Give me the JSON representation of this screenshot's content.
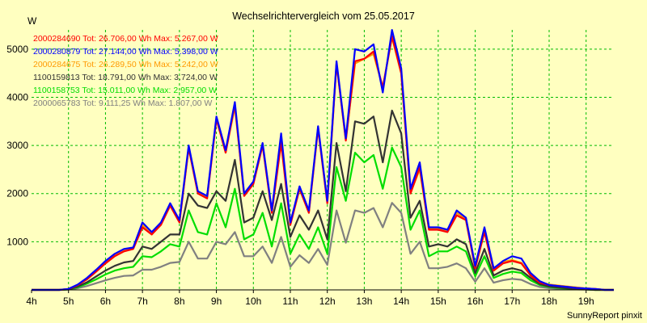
{
  "chart_data": {
    "type": "line",
    "title": "Wechselrichtervergleich vom 25.05.2017",
    "ylabel": "W",
    "xlabel": "",
    "footer": "SunnyReport pinxit",
    "ylim": [
      0,
      5400
    ],
    "yticks": [
      1000,
      2000,
      3000,
      4000,
      5000
    ],
    "xlim": [
      4,
      19.75
    ],
    "xticks": [
      {
        "label": "4h",
        "x": 4
      },
      {
        "label": "5h",
        "x": 5
      },
      {
        "label": "6h",
        "x": 6
      },
      {
        "label": "7h",
        "x": 7
      },
      {
        "label": "8h",
        "x": 8
      },
      {
        "label": "9h",
        "x": 9
      },
      {
        "label": "10h",
        "x": 10
      },
      {
        "label": "11h",
        "x": 11
      },
      {
        "label": "12h",
        "x": 12
      },
      {
        "label": "13h",
        "x": 13
      },
      {
        "label": "14h",
        "x": 14
      },
      {
        "label": "15h",
        "x": 15
      },
      {
        "label": "16h",
        "x": 16
      },
      {
        "label": "17h",
        "x": 17
      },
      {
        "label": "18h",
        "x": 18
      },
      {
        "label": "19h",
        "x": 19
      }
    ],
    "grid": true,
    "legend_position": "top-left",
    "x": [
      4.0,
      4.25,
      4.5,
      4.75,
      5.0,
      5.25,
      5.5,
      5.75,
      6.0,
      6.25,
      6.5,
      6.75,
      7.0,
      7.25,
      7.5,
      7.75,
      8.0,
      8.25,
      8.5,
      8.75,
      9.0,
      9.25,
      9.5,
      9.75,
      10.0,
      10.25,
      10.5,
      10.75,
      11.0,
      11.25,
      11.5,
      11.75,
      12.0,
      12.25,
      12.5,
      12.75,
      13.0,
      13.25,
      13.5,
      13.75,
      14.0,
      14.25,
      14.5,
      14.75,
      15.0,
      15.25,
      15.5,
      15.75,
      16.0,
      16.25,
      16.5,
      16.75,
      17.0,
      17.25,
      17.5,
      17.75,
      18.0,
      18.25,
      18.5,
      18.75,
      19.0,
      19.25,
      19.5,
      19.75
    ],
    "series": [
      {
        "name": "2000284690 Tot: 26.706,00 Wh Max: 5.267,00 W",
        "color": "#ff0000",
        "values": [
          0,
          0,
          0,
          0,
          20,
          100,
          220,
          380,
          550,
          700,
          800,
          850,
          1300,
          1150,
          1350,
          1750,
          1400,
          2950,
          2000,
          1900,
          3550,
          2850,
          3850,
          1950,
          2200,
          3000,
          1600,
          3050,
          1350,
          2100,
          1600,
          3350,
          1800,
          4700,
          3100,
          4750,
          4800,
          4950,
          4200,
          5267,
          4500,
          2000,
          2550,
          1250,
          1250,
          1200,
          1550,
          1450,
          450,
          1200,
          400,
          550,
          600,
          550,
          300,
          150,
          100,
          80,
          60,
          40,
          30,
          20,
          0,
          0
        ]
      },
      {
        "name": "2000280879 Tot: 27.144,00 Wh Max: 5.398,00 W",
        "color": "#0000ff",
        "values": [
          0,
          0,
          0,
          0,
          20,
          110,
          250,
          420,
          600,
          750,
          850,
          880,
          1400,
          1200,
          1400,
          1800,
          1450,
          3000,
          2050,
          1950,
          3600,
          2900,
          3900,
          2000,
          2250,
          3050,
          1650,
          3250,
          1400,
          2150,
          1650,
          3400,
          1850,
          4750,
          3150,
          5000,
          4950,
          5100,
          4100,
          5398,
          4600,
          2100,
          2650,
          1300,
          1300,
          1250,
          1650,
          1500,
          500,
          1300,
          450,
          600,
          700,
          650,
          350,
          180,
          100,
          80,
          60,
          40,
          30,
          20,
          0,
          0
        ]
      },
      {
        "name": "2000284675 Tot: 26.289,50 Wh Max: 5.242,00 W",
        "color": "#ff9900",
        "values": [
          0,
          0,
          0,
          0,
          20,
          100,
          230,
          400,
          570,
          720,
          820,
          860,
          1350,
          1150,
          1380,
          1750,
          1420,
          2950,
          2020,
          1920,
          3550,
          2860,
          3800,
          1980,
          2220,
          3020,
          1620,
          3100,
          1380,
          2120,
          1620,
          3380,
          1820,
          4700,
          3120,
          4700,
          4800,
          4900,
          4200,
          5242,
          4500,
          2020,
          2500,
          1270,
          1270,
          1220,
          1600,
          1480,
          480,
          1250,
          430,
          580,
          620,
          560,
          320,
          170,
          110,
          90,
          70,
          50,
          30,
          20,
          0,
          0
        ]
      },
      {
        "name": "1100159813 Tot: 18.791,00 Wh Max: 3.724,00 W",
        "color": "#333333",
        "values": [
          0,
          0,
          0,
          0,
          10,
          70,
          160,
          280,
          400,
          500,
          570,
          600,
          900,
          850,
          1000,
          1150,
          1150,
          2000,
          1750,
          1700,
          2050,
          1850,
          2700,
          1400,
          1500,
          2050,
          1450,
          2200,
          1100,
          1550,
          1250,
          1650,
          1050,
          3050,
          2050,
          3500,
          3450,
          3600,
          2650,
          3724,
          3250,
          1500,
          1850,
          900,
          950,
          900,
          1050,
          950,
          350,
          850,
          300,
          400,
          450,
          400,
          250,
          120,
          70,
          50,
          30,
          20,
          10,
          0,
          0,
          0
        ]
      },
      {
        "name": "1100158753 Tot: 15.011,00 Wh Max: 2.957,00 W",
        "color": "#00dd00",
        "values": [
          0,
          0,
          0,
          0,
          10,
          55,
          130,
          220,
          320,
          400,
          450,
          480,
          700,
          680,
          800,
          950,
          900,
          1650,
          1200,
          1150,
          1800,
          1300,
          2100,
          1050,
          1150,
          1600,
          900,
          1800,
          750,
          1150,
          850,
          1300,
          750,
          2550,
          1850,
          2850,
          2650,
          2800,
          2100,
          2957,
          2550,
          1250,
          1650,
          700,
          800,
          800,
          900,
          800,
          280,
          700,
          250,
          330,
          380,
          350,
          200,
          100,
          60,
          40,
          25,
          15,
          10,
          0,
          0,
          0
        ]
      },
      {
        "name": "2000065783 Tot: 9.111,25 Wh Max: 1.807,00 W",
        "color": "#808080",
        "values": [
          0,
          0,
          0,
          0,
          5,
          35,
          80,
          140,
          200,
          250,
          290,
          300,
          420,
          420,
          480,
          560,
          580,
          1000,
          650,
          650,
          1000,
          950,
          1200,
          700,
          700,
          900,
          560,
          1100,
          480,
          720,
          560,
          850,
          520,
          1650,
          980,
          1650,
          1600,
          1700,
          1300,
          1807,
          1600,
          750,
          1000,
          450,
          450,
          480,
          550,
          450,
          170,
          450,
          150,
          200,
          230,
          210,
          120,
          60,
          35,
          25,
          15,
          10,
          5,
          0,
          0,
          0
        ]
      }
    ]
  }
}
